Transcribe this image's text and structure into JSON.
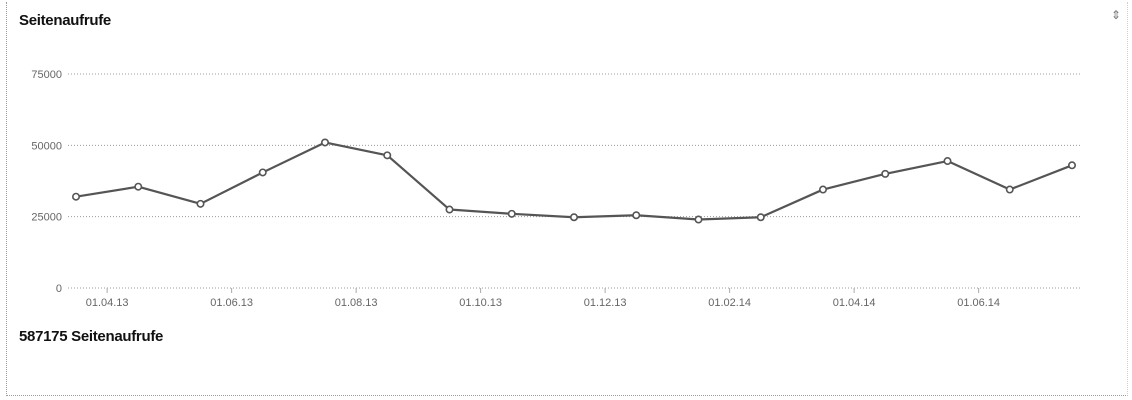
{
  "header": {
    "title": "Seitenaufrufe",
    "menu_icon": "settings-icon"
  },
  "footer": {
    "total": "587175 Seitenaufrufe"
  },
  "chart_data": {
    "type": "line",
    "title": "Seitenaufrufe",
    "xlabel": "",
    "ylabel": "",
    "ylim": [
      0,
      75000
    ],
    "y_ticks": [
      0,
      25000,
      50000,
      75000
    ],
    "y_tick_labels": [
      "0",
      "25000",
      "50000",
      "75000"
    ],
    "x_tick_labels": [
      "01.04.13",
      "01.06.13",
      "01.08.13",
      "01.10.13",
      "01.12.13",
      "01.02.14",
      "01.04.14",
      "01.06.14"
    ],
    "grid": true,
    "line_color": "#555555",
    "series": [
      {
        "values": [
          32000,
          35500,
          29500,
          40500,
          51000,
          46500,
          27500,
          26000,
          24800,
          25500,
          24000,
          24800,
          34500,
          40000,
          44500,
          34500,
          43000
        ]
      }
    ]
  }
}
